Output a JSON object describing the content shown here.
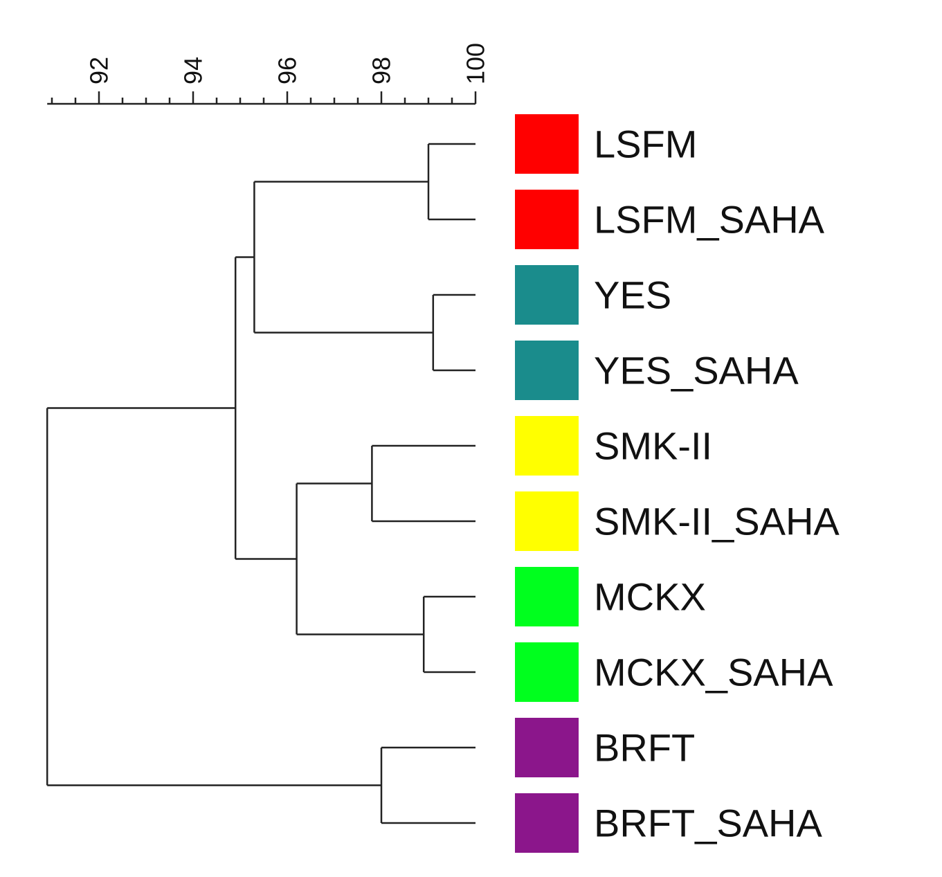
{
  "dendrogram": {
    "axis": {
      "ticks": [
        92,
        94,
        96,
        98,
        100
      ],
      "min": 90.9,
      "max": 100,
      "minor_step": 0.5
    },
    "leaves": [
      {
        "label": "LSFM",
        "color": "#ff0000"
      },
      {
        "label": "LSFM_SAHA",
        "color": "#ff0000"
      },
      {
        "label": "YES",
        "color": "#1a8c8c"
      },
      {
        "label": "YES_SAHA",
        "color": "#1a8c8c"
      },
      {
        "label": "SMK-II",
        "color": "#ffff00"
      },
      {
        "label": "SMK-II_SAHA",
        "color": "#ffff00"
      },
      {
        "label": "MCKX",
        "color": "#00ff1e"
      },
      {
        "label": "MCKX_SAHA",
        "color": "#00ff1e"
      },
      {
        "label": "BRFT",
        "color": "#8b168b"
      },
      {
        "label": "BRFT_SAHA",
        "color": "#8b168b"
      }
    ],
    "merges": [
      {
        "id": "m1",
        "children": [
          "L0",
          "L1"
        ],
        "height": 99.0
      },
      {
        "id": "m2",
        "children": [
          "L2",
          "L3"
        ],
        "height": 99.1
      },
      {
        "id": "m3",
        "children": [
          "L4",
          "L5"
        ],
        "height": 97.8
      },
      {
        "id": "m4",
        "children": [
          "L6",
          "L7"
        ],
        "height": 98.9
      },
      {
        "id": "m5",
        "children": [
          "L8",
          "L9"
        ],
        "height": 98.0
      },
      {
        "id": "m6",
        "children": [
          "m1",
          "m2"
        ],
        "height": 95.3
      },
      {
        "id": "m7",
        "children": [
          "m3",
          "m4"
        ],
        "height": 96.2
      },
      {
        "id": "m8",
        "children": [
          "m6",
          "m7"
        ],
        "height": 94.9
      },
      {
        "id": "m9",
        "children": [
          "m8",
          "m5"
        ],
        "height": 90.9
      }
    ]
  }
}
